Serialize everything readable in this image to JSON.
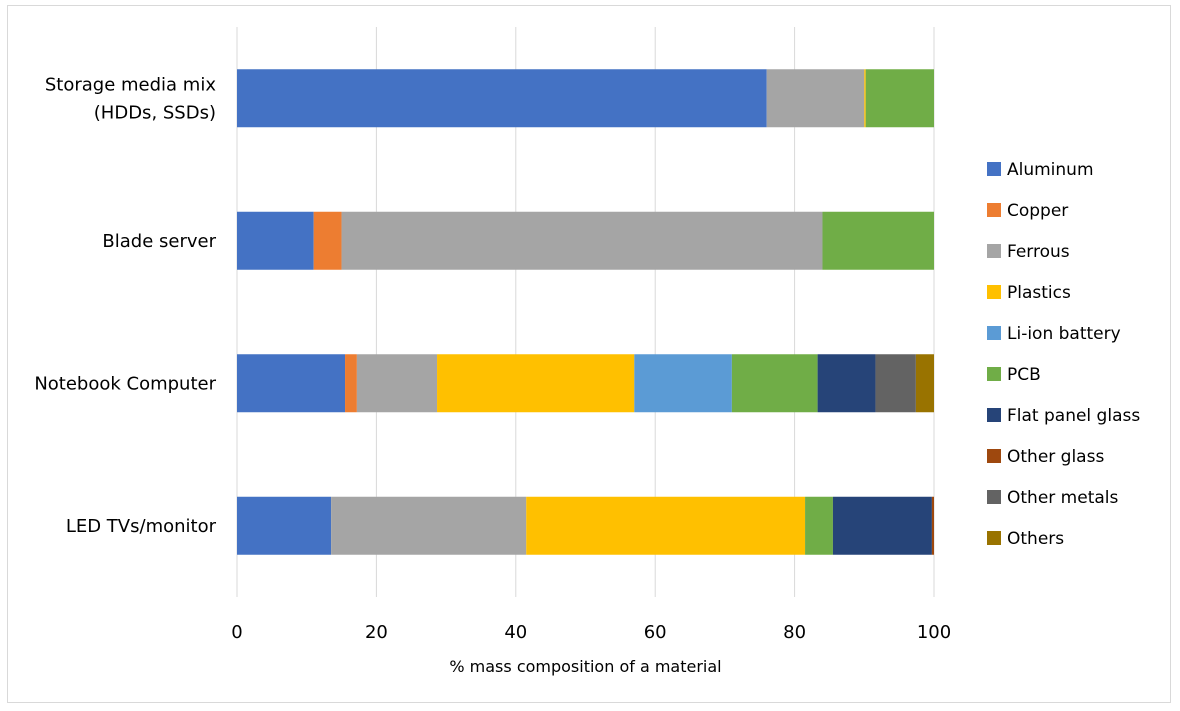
{
  "chart_data": {
    "type": "bar",
    "orientation": "horizontal",
    "stacked": true,
    "title": "",
    "xlabel": "% mass composition of a material",
    "ylabel": "",
    "xlim": [
      0,
      100
    ],
    "x_ticks": [
      "0",
      "20",
      "40",
      "60",
      "80",
      "100"
    ],
    "grid": "vertical",
    "legend_position": "right",
    "categories": [
      [
        "Storage media mix",
        "(HDDs, SSDs)"
      ],
      [
        "Blade server"
      ],
      [
        "Notebook Computer"
      ],
      [
        "LED TVs/monitor"
      ]
    ],
    "series": [
      {
        "name": "Aluminum",
        "color": "#4472C4",
        "values": [
          76,
          11,
          15.5,
          13.5
        ]
      },
      {
        "name": "Copper",
        "color": "#ED7D31",
        "values": [
          0,
          4,
          1.7,
          0
        ]
      },
      {
        "name": "Ferrous",
        "color": "#A5A5A5",
        "values": [
          14,
          69,
          11.5,
          28
        ]
      },
      {
        "name": "Plastics",
        "color": "#FFC000",
        "values": [
          0.2,
          0,
          28.3,
          40
        ]
      },
      {
        "name": "Li-ion battery",
        "color": "#5B9BD5",
        "values": [
          0,
          0,
          14,
          0
        ]
      },
      {
        "name": "PCB",
        "color": "#70AD47",
        "values": [
          9.8,
          16,
          12.3,
          4
        ]
      },
      {
        "name": "Flat panel glass",
        "color": "#264478",
        "values": [
          0,
          0,
          8.3,
          14.2
        ]
      },
      {
        "name": "Other glass",
        "color": "#9E480E",
        "values": [
          0,
          0,
          0,
          0.3
        ]
      },
      {
        "name": "Other metals",
        "color": "#636363",
        "values": [
          0,
          0,
          5.8,
          0
        ]
      },
      {
        "name": "Others",
        "color": "#997300",
        "values": [
          0,
          0,
          2.6,
          0
        ]
      }
    ]
  }
}
